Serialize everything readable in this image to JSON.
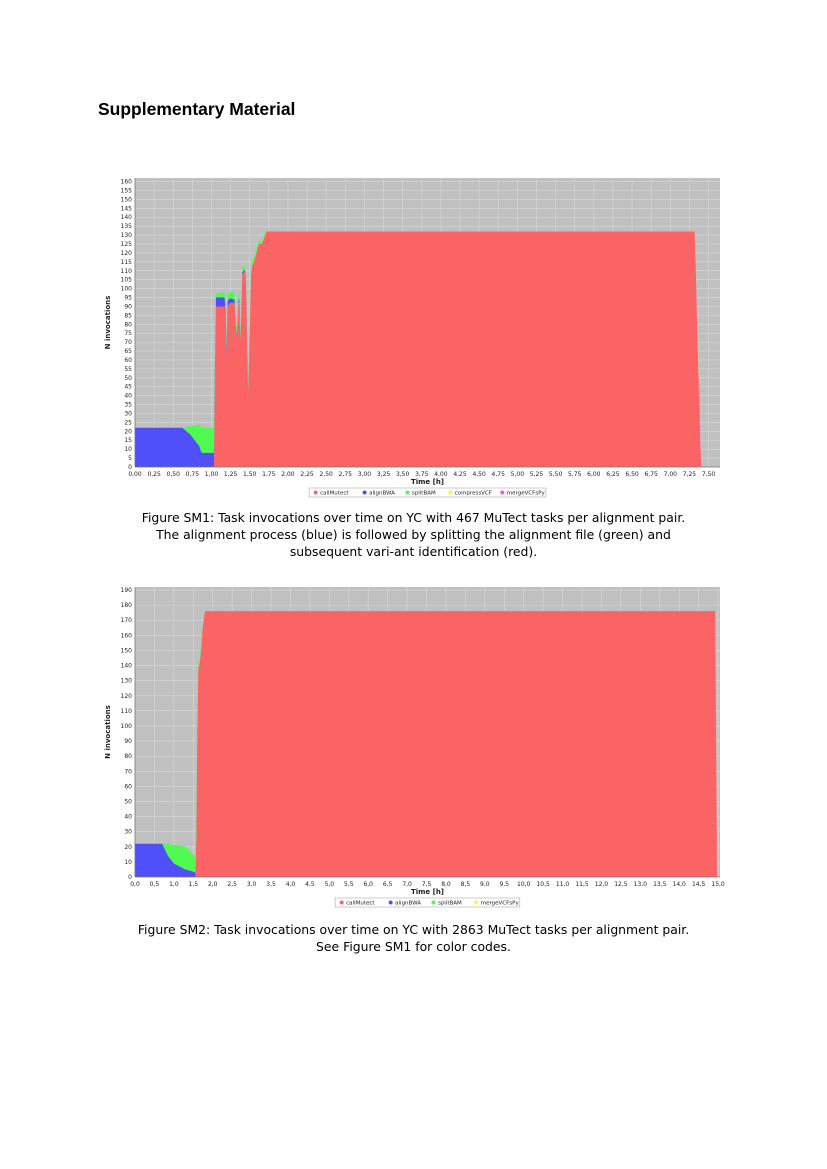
{
  "page": {
    "heading": "Supplementary Material"
  },
  "figures": [
    {
      "id": "SM1",
      "caption": "Figure SM1: Task invocations over time on YC with 467 MuTect tasks per alignment pair. The alignment process (blue) is followed by splitting the alignment file (green) and subsequent vari-ant identification (red)."
    },
    {
      "id": "SM2",
      "caption": "Figure SM2: Task invocations over time on YC with 2863 MuTect tasks per alignment pair. See Figure SM1 for color codes."
    }
  ],
  "chart_data": [
    {
      "type": "area",
      "xlabel": "Time [h]",
      "ylabel": "N invocations",
      "xlim": [
        0,
        7.65
      ],
      "ylim": [
        0,
        162
      ],
      "x_ticks": [
        0,
        0.25,
        0.5,
        0.75,
        1.0,
        1.25,
        1.5,
        1.75,
        2.0,
        2.25,
        2.5,
        2.75,
        3.0,
        3.25,
        3.5,
        3.75,
        4.0,
        4.25,
        4.5,
        4.75,
        5.0,
        5.25,
        5.5,
        5.75,
        6.0,
        6.25,
        6.5,
        6.75,
        7.0,
        7.25,
        7.5
      ],
      "x_tick_labels": [
        "0,00",
        "0,25",
        "0,50",
        "0,75",
        "1,00",
        "1,25",
        "1,50",
        "1,75",
        "2,00",
        "2,25",
        "2,50",
        "2,75",
        "3,00",
        "3,25",
        "3,50",
        "3,75",
        "4,00",
        "4,25",
        "4,50",
        "4,75",
        "5,00",
        "5,25",
        "5,50",
        "5,75",
        "6,00",
        "6,25",
        "6,50",
        "6,75",
        "7,00",
        "7,25",
        "7,50"
      ],
      "y_ticks": [
        0,
        5,
        10,
        15,
        20,
        25,
        30,
        35,
        40,
        45,
        50,
        55,
        60,
        65,
        70,
        75,
        80,
        85,
        90,
        95,
        100,
        105,
        110,
        115,
        120,
        125,
        130,
        135,
        140,
        145,
        150,
        155,
        160
      ],
      "grid": true,
      "legend_position": "bottom",
      "colors": {
        "callMutect": "#fa6464",
        "alignBWA": "#5050fa",
        "splitBAM": "#50fa50",
        "compressVCF": "#f5f550",
        "mergeVCFsPy": "#f550f5",
        "background": "#c0c0c0"
      },
      "series": [
        {
          "name": "callMutect",
          "x": [
            0,
            1.04,
            1.05,
            1.08,
            1.18,
            1.2,
            1.21,
            1.24,
            1.3,
            1.33,
            1.36,
            1.38,
            1.4,
            1.45,
            1.48,
            1.52,
            1.55,
            1.62,
            1.66,
            1.72,
            1.8,
            1.85,
            1.87,
            7.3,
            7.32,
            7.4
          ],
          "values": [
            0,
            0,
            90,
            90,
            90,
            60,
            90,
            92,
            92,
            70,
            100,
            65,
            108,
            110,
            40,
            112,
            114,
            125,
            125,
            132,
            132,
            132,
            132,
            132,
            132,
            0
          ]
        },
        {
          "name": "alignBWA",
          "x": [
            0,
            0.5,
            0.62,
            0.73,
            0.78,
            0.84,
            0.87,
            1.04,
            1.05,
            1.18,
            1.21,
            1.3,
            1.33,
            1.36,
            1.38,
            1.4,
            1.45,
            1.48
          ],
          "values": [
            22,
            22,
            22,
            18,
            15,
            12,
            8,
            8,
            5,
            5,
            3,
            2,
            1,
            2,
            1,
            1,
            1,
            0
          ]
        },
        {
          "name": "splitBAM",
          "x": [
            0,
            0.5,
            0.62,
            0.73,
            0.78,
            0.84,
            0.87,
            1.04,
            1.05,
            1.18,
            1.21,
            1.3,
            1.36,
            1.4,
            1.45,
            1.52,
            1.6,
            1.7,
            1.75
          ],
          "values": [
            0,
            0,
            0,
            5,
            8,
            12,
            14,
            14,
            2,
            3,
            3,
            4,
            3,
            3,
            2,
            3,
            2,
            1,
            0
          ]
        },
        {
          "name": "compressVCF",
          "x": [
            7.35,
            7.4
          ],
          "values": [
            5,
            0
          ]
        },
        {
          "name": "mergeVCFsPy",
          "x": [
            7.38,
            7.4
          ],
          "values": [
            12,
            0
          ]
        }
      ]
    },
    {
      "type": "area",
      "xlabel": "Time [h]",
      "ylabel": "N invocations",
      "xlim": [
        0,
        15.05
      ],
      "ylim": [
        0,
        192
      ],
      "x_ticks": [
        0,
        0.5,
        1.0,
        1.5,
        2.0,
        2.5,
        3.0,
        3.5,
        4.0,
        4.5,
        5.0,
        5.5,
        6.0,
        6.5,
        7.0,
        7.5,
        8.0,
        8.5,
        9.0,
        9.5,
        10.0,
        10.5,
        11.0,
        11.5,
        12.0,
        12.5,
        13.0,
        13.5,
        14.0,
        14.5,
        15.0
      ],
      "x_tick_labels": [
        "0,0",
        "0,5",
        "1,0",
        "1,5",
        "2,0",
        "2,5",
        "3,0",
        "3,5",
        "4,0",
        "4,5",
        "5,0",
        "5,5",
        "6,0",
        "6,5",
        "7,0",
        "7,5",
        "8,0",
        "8,5",
        "9,0",
        "9,5",
        "10,0",
        "10,5",
        "11,0",
        "11,5",
        "12,0",
        "12,5",
        "13,0",
        "13,5",
        "14,0",
        "14,5",
        "15,0"
      ],
      "y_ticks": [
        0,
        10,
        20,
        30,
        40,
        50,
        60,
        70,
        80,
        90,
        100,
        110,
        120,
        130,
        140,
        150,
        160,
        170,
        180,
        190
      ],
      "grid": true,
      "legend_position": "bottom",
      "colors": {
        "callMutect": "#fa6464",
        "alignBWA": "#5050fa",
        "splitBAM": "#50fa50",
        "mergeVCFsPy": "#f5f550",
        "background": "#c0c0c0"
      },
      "series": [
        {
          "name": "callMutect",
          "x": [
            0,
            1.55,
            1.57,
            1.62,
            1.66,
            1.7,
            1.74,
            1.8,
            14.9,
            14.94,
            14.96
          ],
          "values": [
            0,
            0,
            0,
            138,
            140,
            150,
            165,
            176,
            176,
            176,
            0
          ]
        },
        {
          "name": "alignBWA",
          "x": [
            0,
            0.6,
            0.7,
            0.85,
            1.0,
            1.15,
            1.3,
            1.45,
            1.55,
            1.6,
            1.65
          ],
          "values": [
            22,
            22,
            22,
            14,
            9,
            7,
            5,
            4,
            3,
            1,
            0
          ]
        },
        {
          "name": "splitBAM",
          "x": [
            0,
            0.6,
            0.7,
            0.85,
            1.0,
            1.15,
            1.3,
            1.45,
            1.55,
            1.6,
            1.7,
            1.8
          ],
          "values": [
            0,
            0,
            0,
            8,
            12,
            14,
            15,
            12,
            10,
            4,
            2,
            0
          ]
        },
        {
          "name": "mergeVCFsPy",
          "x": [
            14.94,
            14.96
          ],
          "values": [
            8,
            0
          ]
        }
      ]
    }
  ]
}
